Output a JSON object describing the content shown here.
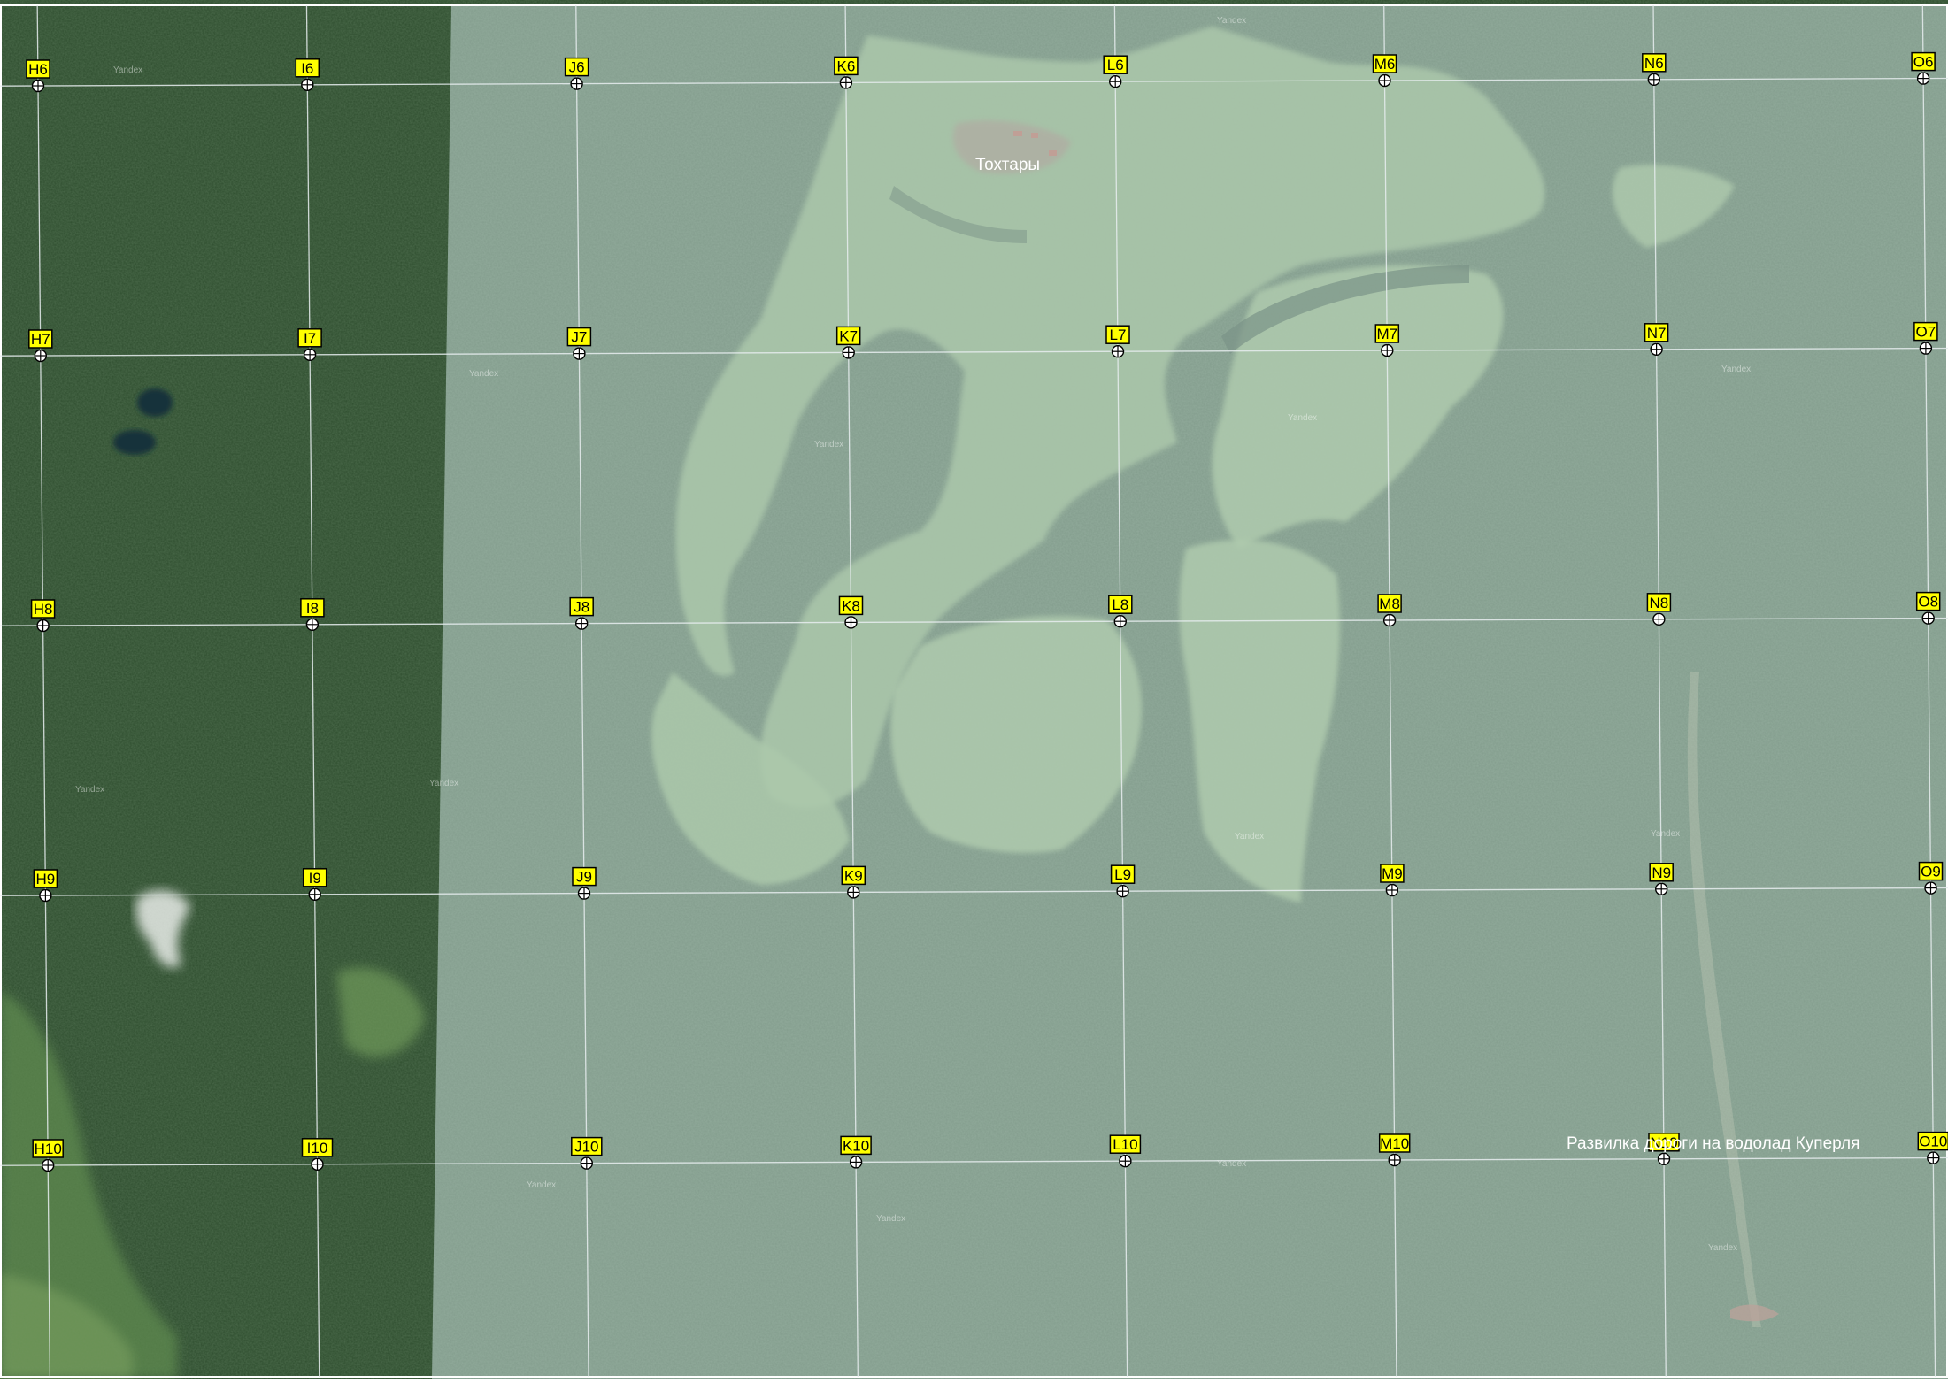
{
  "map": {
    "grid": {
      "columns": [
        "H",
        "I",
        "J",
        "K",
        "L",
        "M",
        "N",
        "O"
      ],
      "rows": [
        "6",
        "7",
        "8",
        "9",
        "10"
      ]
    },
    "places": [
      {
        "id": "village-tokhtary",
        "label": "Тохтары"
      },
      {
        "id": "fork-road",
        "label": "Развилка дороги на водолад Куперля"
      }
    ],
    "watermark": "Yandex",
    "colors": {
      "label_fill": "#ffff00",
      "label_border": "#000000",
      "grid_line": "#e8eef0",
      "forest_dark": "#2c4a2c",
      "overlay": "#cfe6e6"
    }
  }
}
